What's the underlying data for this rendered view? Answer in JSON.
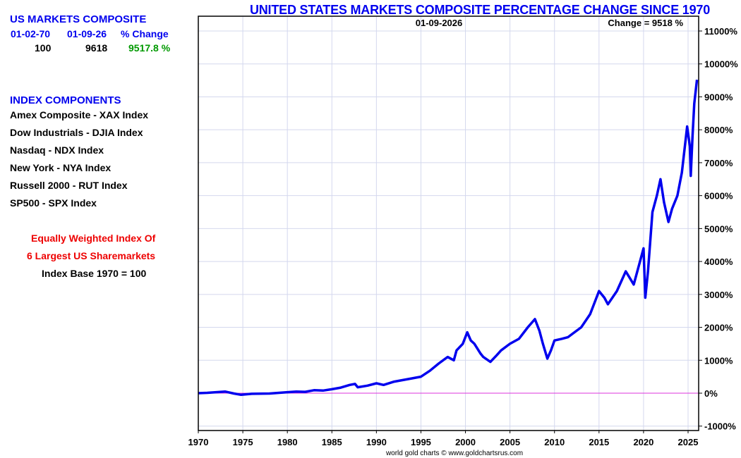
{
  "sidebar": {
    "summary": {
      "heading": "US MARKETS COMPOSITE",
      "col_headers": [
        "01-02-70",
        "01-09-26",
        "% Change"
      ],
      "values": [
        "100",
        "9618",
        "9517.8 %"
      ]
    },
    "components": {
      "heading": "INDEX COMPONENTS",
      "items": [
        "Amex Composite - XAX Index",
        "Dow Industrials - DJIA Index",
        "Nasdaq - NDX Index",
        "New York - NYA Index",
        "Russell 2000 - RUT Index",
        "SP500 - SPX Index"
      ]
    },
    "note_line1": "Equally Weighted Index Of",
    "note_line2": "6 Largest US Sharemarkets",
    "note_line3": "Index Base 1970 = 100"
  },
  "colors": {
    "series": "#0000ee",
    "zero_line": "#dd33dd",
    "grid": "#d4d8ee",
    "heading": "#0000ee",
    "note": "#ee0000",
    "change": "#009900"
  },
  "chart_data": {
    "type": "line",
    "title": "UNITED STATES MARKETS COMPOSITE PERCENTAGE CHANGE SINCE 1970",
    "date_label": "01-09-2026",
    "change_label": "Change = 9518 %",
    "credit": "world gold charts © www.goldchartsrus.com",
    "xlabel": "",
    "ylabel": "",
    "xlim": [
      1970,
      2026.1
    ],
    "ylim": [
      -1000,
      11500
    ],
    "grid": true,
    "x_ticks": [
      "1970",
      "1975",
      "1980",
      "1985",
      "1990",
      "1995",
      "2000",
      "2005",
      "2010",
      "2015",
      "2020",
      "2025"
    ],
    "x_tick_values": [
      1970,
      1975,
      1980,
      1985,
      1990,
      1995,
      2000,
      2005,
      2010,
      2015,
      2020,
      2025
    ],
    "y_ticks": [
      "-1000%",
      "0%",
      "1000%",
      "2000%",
      "3000%",
      "4000%",
      "5000%",
      "6000%",
      "7000%",
      "8000%",
      "9000%",
      "10000%",
      "11000%"
    ],
    "y_tick_values": [
      -1000,
      0,
      1000,
      2000,
      3000,
      4000,
      5000,
      6000,
      7000,
      8000,
      9000,
      10000,
      11000
    ],
    "reference_line": 0,
    "series": [
      {
        "name": "US Markets Composite % Change",
        "x": [
          1970,
          1971,
          1972,
          1973,
          1974,
          1974.8,
          1976,
          1978,
          1980,
          1981,
          1982,
          1983,
          1984,
          1985,
          1986,
          1987,
          1987.6,
          1987.9,
          1989,
          1990,
          1990.8,
          1992,
          1994,
          1995,
          1996,
          1997,
          1998,
          1998.7,
          1999,
          1999.7,
          2000.2,
          2000.6,
          2001,
          2001.7,
          2002,
          2002.8,
          2003.5,
          2004,
          2005,
          2006,
          2007,
          2007.8,
          2008.3,
          2008.7,
          2009.2,
          2009.6,
          2010,
          2010.8,
          2011.5,
          2012,
          2013,
          2014,
          2015,
          2015.6,
          2016,
          2017,
          2018,
          2018.9,
          2019.5,
          2020,
          2020.2,
          2020.5,
          2021,
          2021.5,
          2021.9,
          2022.3,
          2022.8,
          2023.2,
          2023.8,
          2024.3,
          2024.9,
          2025.2,
          2025.3,
          2025.5,
          2025.7,
          2026.0
        ],
        "y": [
          0,
          10,
          30,
          50,
          -10,
          -50,
          -20,
          -10,
          30,
          50,
          40,
          90,
          80,
          120,
          170,
          250,
          280,
          180,
          230,
          300,
          250,
          350,
          450,
          500,
          680,
          900,
          1100,
          1000,
          1300,
          1500,
          1850,
          1600,
          1500,
          1200,
          1100,
          950,
          1150,
          1300,
          1500,
          1650,
          2000,
          2250,
          1900,
          1500,
          1050,
          1300,
          1600,
          1650,
          1700,
          1800,
          2000,
          2400,
          3100,
          2900,
          2700,
          3100,
          3700,
          3300,
          3900,
          4400,
          2900,
          3700,
          5500,
          6000,
          6500,
          5800,
          5200,
          5600,
          6000,
          6700,
          8100,
          7500,
          6600,
          7800,
          8800,
          9518
        ]
      }
    ]
  }
}
